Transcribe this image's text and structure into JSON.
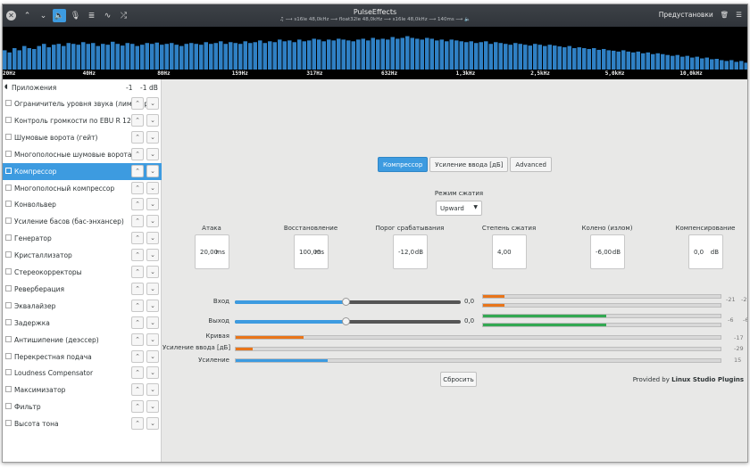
{
  "window": {
    "title": "PulseEffects",
    "subtitle": "♫ ⟶ s16le 48,0kHz ⟶ float32le 48,0kHz ⟶ s16le 48,0kHz ⟶ 140ms ⟶ 🔈",
    "presets_label": "Предустановки"
  },
  "spectrum": {
    "freq_labels": [
      "20Hz",
      "40Hz",
      "80Hz",
      "159Hz",
      "317Hz",
      "632Hz",
      "1,3kHz",
      "2,5kHz",
      "5,0kHz",
      "10,0kHz"
    ],
    "bar_color": "#2f80c4",
    "levels": [
      0.45,
      0.4,
      0.5,
      0.45,
      0.55,
      0.5,
      0.48,
      0.55,
      0.6,
      0.52,
      0.58,
      0.6,
      0.55,
      0.62,
      0.6,
      0.58,
      0.64,
      0.6,
      0.62,
      0.55,
      0.6,
      0.58,
      0.65,
      0.6,
      0.56,
      0.62,
      0.6,
      0.55,
      0.58,
      0.62,
      0.6,
      0.63,
      0.58,
      0.6,
      0.62,
      0.58,
      0.55,
      0.6,
      0.62,
      0.6,
      0.58,
      0.64,
      0.6,
      0.62,
      0.66,
      0.6,
      0.64,
      0.62,
      0.6,
      0.66,
      0.62,
      0.64,
      0.68,
      0.62,
      0.66,
      0.64,
      0.7,
      0.66,
      0.68,
      0.64,
      0.7,
      0.66,
      0.68,
      0.72,
      0.7,
      0.66,
      0.7,
      0.68,
      0.72,
      0.7,
      0.68,
      0.66,
      0.7,
      0.72,
      0.68,
      0.74,
      0.7,
      0.72,
      0.7,
      0.76,
      0.72,
      0.74,
      0.78,
      0.74,
      0.72,
      0.7,
      0.74,
      0.72,
      0.68,
      0.7,
      0.66,
      0.7,
      0.68,
      0.66,
      0.64,
      0.66,
      0.62,
      0.64,
      0.66,
      0.6,
      0.64,
      0.62,
      0.6,
      0.58,
      0.62,
      0.6,
      0.58,
      0.56,
      0.6,
      0.58,
      0.55,
      0.58,
      0.56,
      0.54,
      0.52,
      0.55,
      0.5,
      0.52,
      0.5,
      0.48,
      0.5,
      0.46,
      0.48,
      0.45,
      0.44,
      0.42,
      0.45,
      0.42,
      0.4,
      0.42,
      0.38,
      0.4,
      0.36,
      0.38,
      0.36,
      0.34,
      0.32,
      0.34,
      0.3,
      0.32,
      0.28,
      0.3,
      0.26,
      0.28,
      0.24,
      0.25,
      0.22,
      0.2,
      0.22,
      0.18,
      0.2,
      0.16
    ]
  },
  "sidebar": {
    "apps_label": "Приложения",
    "apps_left": "-1",
    "apps_right": "-1",
    "apps_unit": "dB",
    "items": [
      {
        "label": "Ограничитель уровня звука (лимитер)"
      },
      {
        "label": "Контроль громкости по EBU R 128"
      },
      {
        "label": "Шумовые ворота (гейт)"
      },
      {
        "label": "Многополосные шумовые ворота"
      },
      {
        "label": "Компрессор"
      },
      {
        "label": "Многополосный компрессор"
      },
      {
        "label": "Конвольвер"
      },
      {
        "label": "Усиление басов (бас-энхансер)"
      },
      {
        "label": "Генератор"
      },
      {
        "label": "Кристаллизатор"
      },
      {
        "label": "Стереокорректоры"
      },
      {
        "label": "Реверберация"
      },
      {
        "label": "Эквалайзер"
      },
      {
        "label": "Задержка"
      },
      {
        "label": "Антишипение (деэссер)"
      },
      {
        "label": "Перекрестная подача"
      },
      {
        "label": "Loudness Compensator"
      },
      {
        "label": "Максимизатор"
      },
      {
        "label": "Фильтр"
      },
      {
        "label": "Высота тона"
      }
    ],
    "selected_index": 4
  },
  "main": {
    "tabs": [
      {
        "label": "Компрессор"
      },
      {
        "label": "Усиление ввода [дБ]"
      },
      {
        "label": "Advanced"
      }
    ],
    "mode_label": "Режим сжатия",
    "mode_value": "Upward",
    "params": [
      {
        "label": "Атака",
        "value": "20,00",
        "unit": "ms"
      },
      {
        "label": "Восстановление",
        "value": "100,00",
        "unit": "ms"
      },
      {
        "label": "Порог срабатывания",
        "value": "-12,0",
        "unit": "dB"
      },
      {
        "label": "Степень сжатия",
        "value": "4,00",
        "unit": ""
      },
      {
        "label": "Колено (излом)",
        "value": "-6,00",
        "unit": "dB"
      },
      {
        "label": "Компенсирование",
        "value": "0,0",
        "unit": "dB"
      }
    ],
    "input_label": "Вход",
    "input_value": "0,0",
    "input_fraction": 0.49,
    "output_label": "Выход",
    "output_value": "0,0",
    "output_fraction": 0.49,
    "input_meter": {
      "l": 0.09,
      "r": 0.09,
      "l_db": "-21",
      "r_db": "-21",
      "color": "#e8751a"
    },
    "output_meter": {
      "l": 0.52,
      "r": 0.52,
      "l_db": "-6",
      "r_db": "-6",
      "color": "#33a852"
    },
    "curve": {
      "label": "Кривая",
      "fraction": 0.14,
      "value": "-17",
      "color": "#e8751a"
    },
    "input_gain": {
      "label": "Усиление ввода [дБ]",
      "fraction": 0.035,
      "value": "-29",
      "color": "#e8751a"
    },
    "gain": {
      "label": "Усиление",
      "fraction": 0.19,
      "value": "15",
      "color": "#3d9be0"
    },
    "reset_label": "Сбросить",
    "provided_prefix": "Provided by ",
    "provided_name": "Linux Studio Plugins",
    "accent": "#3d9be0"
  }
}
